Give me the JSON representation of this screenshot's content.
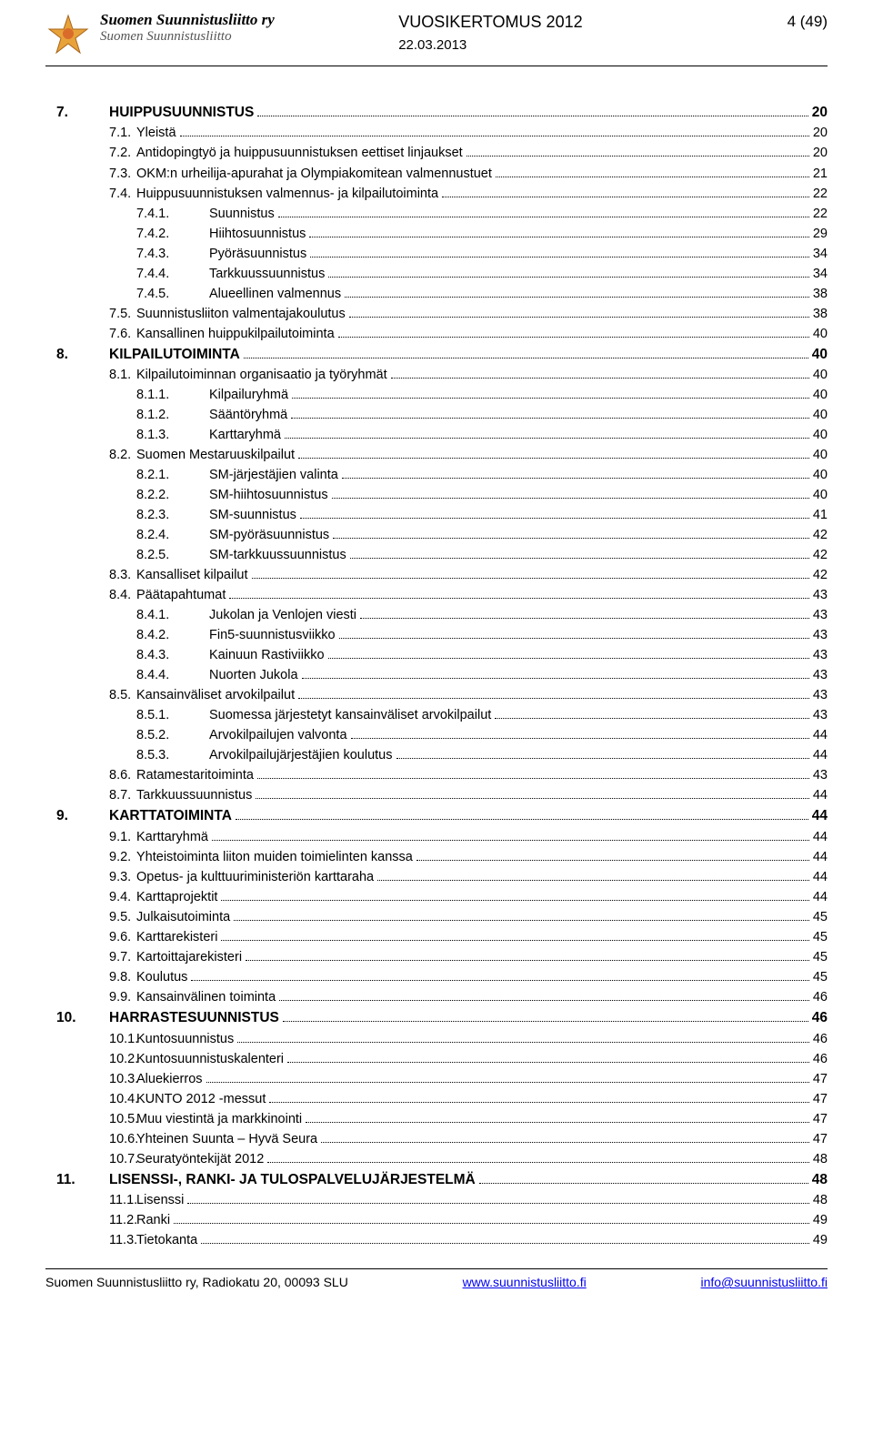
{
  "header": {
    "org_name": "Suomen Suunnistusliitto ry",
    "sub_name": "Suomen Suunnistusliitto",
    "doc_title": "VUOSIKERTOMUS 2012",
    "doc_date": "22.03.2013",
    "page_indicator": "4 (49)"
  },
  "toc": [
    {
      "level": 1,
      "num": "7.",
      "title": "HUIPPUSUUNNISTUS",
      "page": "20"
    },
    {
      "level": 2,
      "num": "7.1.",
      "title": "Yleistä",
      "page": "20"
    },
    {
      "level": 2,
      "num": "7.2.",
      "title": "Antidopingtyö ja huippusuunnistuksen eettiset linjaukset",
      "page": "20"
    },
    {
      "level": 2,
      "num": "7.3.",
      "title": "OKM:n urheilija-apurahat ja Olympiakomitean valmennustuet",
      "page": "21"
    },
    {
      "level": 2,
      "num": "7.4.",
      "title": "Huippusuunnistuksen valmennus- ja kilpailutoiminta",
      "page": "22"
    },
    {
      "level": 3,
      "num": "7.4.1.",
      "title": "Suunnistus",
      "page": "22"
    },
    {
      "level": 3,
      "num": "7.4.2.",
      "title": "Hiihtosuunnistus",
      "page": "29"
    },
    {
      "level": 3,
      "num": "7.4.3.",
      "title": "Pyöräsuunnistus",
      "page": "34"
    },
    {
      "level": 3,
      "num": "7.4.4.",
      "title": "Tarkkuussuunnistus",
      "page": "34"
    },
    {
      "level": 3,
      "num": "7.4.5.",
      "title": "Alueellinen valmennus",
      "page": "38"
    },
    {
      "level": 2,
      "num": "7.5.",
      "title": "Suunnistusliiton valmentajakoulutus",
      "page": "38"
    },
    {
      "level": 2,
      "num": "7.6.",
      "title": "Kansallinen huippukilpailutoiminta",
      "page": "40"
    },
    {
      "level": 1,
      "num": "8.",
      "title": "KILPAILUTOIMINTA",
      "page": "40"
    },
    {
      "level": 2,
      "num": "8.1.",
      "title": "Kilpailutoiminnan organisaatio ja työryhmät",
      "page": "40"
    },
    {
      "level": 3,
      "num": "8.1.1.",
      "title": "Kilpailuryhmä",
      "page": "40"
    },
    {
      "level": 3,
      "num": "8.1.2.",
      "title": "Sääntöryhmä",
      "page": "40"
    },
    {
      "level": 3,
      "num": "8.1.3.",
      "title": "Karttaryhmä",
      "page": "40"
    },
    {
      "level": 2,
      "num": "8.2.",
      "title": "Suomen Mestaruuskilpailut",
      "page": "40"
    },
    {
      "level": 3,
      "num": "8.2.1.",
      "title": "SM-järjestäjien valinta",
      "page": "40"
    },
    {
      "level": 3,
      "num": "8.2.2.",
      "title": "SM-hiihtosuunnistus",
      "page": "40"
    },
    {
      "level": 3,
      "num": "8.2.3.",
      "title": "SM-suunnistus",
      "page": "41"
    },
    {
      "level": 3,
      "num": "8.2.4.",
      "title": "SM-pyöräsuunnistus",
      "page": "42"
    },
    {
      "level": 3,
      "num": "8.2.5.",
      "title": "SM-tarkkuussuunnistus",
      "page": "42"
    },
    {
      "level": 2,
      "num": "8.3.",
      "title": "Kansalliset kilpailut",
      "page": "42"
    },
    {
      "level": 2,
      "num": "8.4.",
      "title": "Päätapahtumat",
      "page": "43"
    },
    {
      "level": 3,
      "num": "8.4.1.",
      "title": "Jukolan ja Venlojen viesti",
      "page": "43"
    },
    {
      "level": 3,
      "num": "8.4.2.",
      "title": "Fin5-suunnistusviikko",
      "page": "43"
    },
    {
      "level": 3,
      "num": "8.4.3.",
      "title": "Kainuun Rastiviikko",
      "page": "43"
    },
    {
      "level": 3,
      "num": "8.4.4.",
      "title": "Nuorten Jukola",
      "page": "43"
    },
    {
      "level": 2,
      "num": "8.5.",
      "title": "Kansainväliset arvokilpailut",
      "page": "43"
    },
    {
      "level": 3,
      "num": "8.5.1.",
      "title": "Suomessa järjestetyt kansainväliset arvokilpailut",
      "page": "43"
    },
    {
      "level": 3,
      "num": "8.5.2.",
      "title": "Arvokilpailujen valvonta",
      "page": "44"
    },
    {
      "level": 3,
      "num": "8.5.3.",
      "title": "Arvokilpailujärjestäjien koulutus",
      "page": "44"
    },
    {
      "level": 2,
      "num": "8.6.",
      "title": "Ratamestaritoiminta",
      "page": "43"
    },
    {
      "level": 2,
      "num": "8.7.",
      "title": "Tarkkuussuunnistus",
      "page": "44"
    },
    {
      "level": 1,
      "num": "9.",
      "title": "KARTTATOIMINTA",
      "page": "44"
    },
    {
      "level": 2,
      "num": "9.1.",
      "title": "Karttaryhmä",
      "page": "44"
    },
    {
      "level": 2,
      "num": "9.2.",
      "title": "Yhteistoiminta liiton muiden toimielinten kanssa",
      "page": "44"
    },
    {
      "level": 2,
      "num": "9.3.",
      "title": "Opetus- ja kulttuuriministeriön karttaraha",
      "page": "44"
    },
    {
      "level": 2,
      "num": "9.4.",
      "title": "Karttaprojektit",
      "page": "44"
    },
    {
      "level": 2,
      "num": "9.5.",
      "title": "Julkaisutoiminta",
      "page": "45"
    },
    {
      "level": 2,
      "num": "9.6.",
      "title": "Karttarekisteri",
      "page": "45"
    },
    {
      "level": 2,
      "num": "9.7.",
      "title": "Kartoittajarekisteri",
      "page": "45"
    },
    {
      "level": 2,
      "num": "9.8.",
      "title": "Koulutus",
      "page": "45"
    },
    {
      "level": 2,
      "num": "9.9.",
      "title": "Kansainvälinen toiminta",
      "page": "46"
    },
    {
      "level": 1,
      "num": "10.",
      "title": "HARRASTESUUNNISTUS",
      "page": "46"
    },
    {
      "level": 2,
      "num": "10.1.",
      "title": "Kuntosuunnistus",
      "page": "46"
    },
    {
      "level": 2,
      "num": "10.2.",
      "title": "Kuntosuunnistuskalenteri",
      "page": "46"
    },
    {
      "level": 2,
      "num": "10.3.",
      "title": "Aluekierros",
      "page": "47"
    },
    {
      "level": 2,
      "num": "10.4.",
      "title": "KUNTO 2012 -messut",
      "page": "47"
    },
    {
      "level": 2,
      "num": "10.5.",
      "title": "Muu viestintä ja markkinointi",
      "page": "47"
    },
    {
      "level": 2,
      "num": "10.6.",
      "title": "Yhteinen Suunta – Hyvä Seura",
      "page": "47"
    },
    {
      "level": 2,
      "num": "10.7.",
      "title": "Seuratyöntekijät 2012",
      "page": "48"
    },
    {
      "level": 1,
      "num": "11.",
      "title": "LISENSSI-, RANKI- JA TULOSPALVELUJÄRJESTELMÄ",
      "page": "48"
    },
    {
      "level": 2,
      "num": "11.1.",
      "title": "Lisenssi",
      "page": "48"
    },
    {
      "level": 2,
      "num": "11.2.",
      "title": "Ranki",
      "page": "49"
    },
    {
      "level": 2,
      "num": "11.3.",
      "title": "Tietokanta",
      "page": "49"
    }
  ],
  "footer": {
    "address": "Suomen Suunnistusliitto ry, Radiokatu 20, 00093 SLU",
    "website": "www.suunnistusliitto.fi",
    "email": "info@suunnistusliitto.fi"
  }
}
